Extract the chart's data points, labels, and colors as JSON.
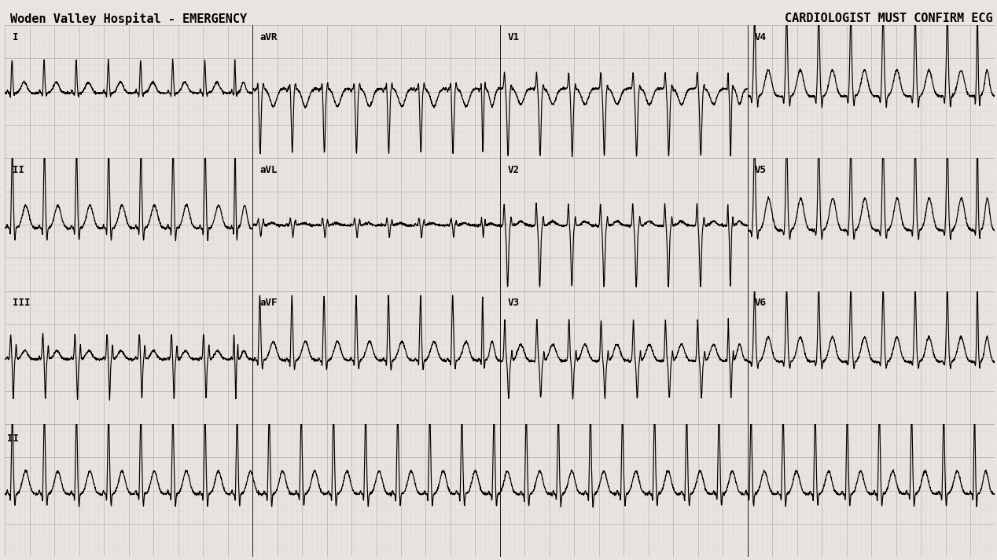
{
  "title_left": "Woden Valley Hospital - EMERGENCY",
  "title_right": "CARDIOLOGIST MUST CONFIRM ECG",
  "bg_color": "#f0ece8",
  "grid_minor_color": "#d8ccc8",
  "grid_major_color": "#c8a8a8",
  "line_color": "#000000",
  "text_color": "#000000",
  "row_leads": [
    [
      "I",
      "aVR",
      "V1",
      "V4"
    ],
    [
      "II",
      "aVL",
      "V2",
      "V5"
    ],
    [
      "III",
      "aVF",
      "V3",
      "V6"
    ],
    [
      "II"
    ]
  ],
  "beat_rate": 185,
  "fs": 500
}
